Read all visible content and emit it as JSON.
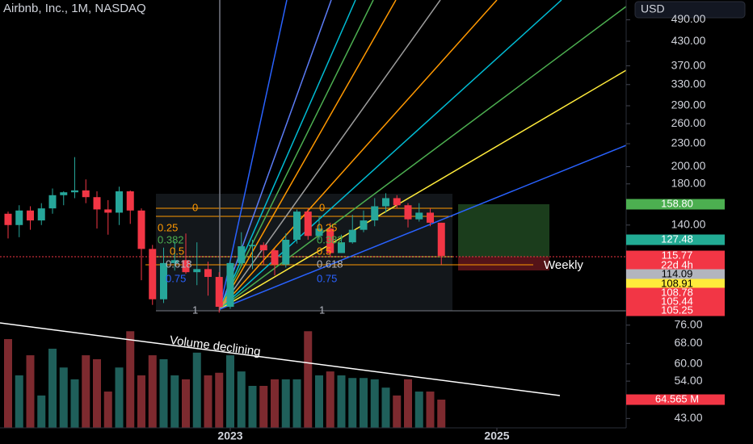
{
  "chart_data": {
    "type": "candlestick",
    "title": "Airbnb, Inc., 1M, NASDAQ",
    "currency": "USD",
    "log_scale": true,
    "categories": [
      null,
      null,
      null,
      null,
      null,
      null,
      null,
      null,
      null,
      null,
      null,
      null,
      null,
      null,
      null,
      null,
      null,
      null,
      null,
      null,
      null,
      null,
      null,
      null,
      null,
      null,
      null,
      null,
      null,
      null,
      null,
      null,
      null,
      null,
      null,
      null,
      null,
      null,
      null,
      null
    ],
    "open": [
      150,
      140,
      153,
      144,
      155,
      168,
      171,
      173,
      166,
      154,
      151,
      172,
      153,
      121,
      89,
      111,
      113,
      105,
      107,
      102,
      85,
      111,
      123,
      124,
      120,
      110,
      128,
      152,
      131,
      137,
      118,
      126,
      136,
      144,
      157,
      165,
      158,
      145,
      151,
      142
    ],
    "high": [
      152,
      158,
      157,
      160,
      175,
      172,
      212,
      185,
      172,
      163,
      177,
      173,
      155,
      124,
      122,
      127,
      133,
      126,
      112,
      105,
      113,
      134,
      128,
      126,
      121,
      133,
      154,
      155,
      148,
      142,
      132,
      149,
      153,
      165,
      170,
      168,
      160,
      160,
      155,
      142
    ],
    "low": [
      129,
      130,
      136,
      140,
      150,
      158,
      165,
      160,
      137,
      132,
      140,
      141,
      100,
      86,
      87,
      106,
      104,
      97,
      91,
      82,
      84,
      109,
      107,
      110,
      103,
      108,
      125,
      128,
      128,
      115,
      118,
      125,
      134,
      139,
      151,
      155,
      138,
      143,
      139,
      110
    ],
    "close": [
      140,
      153,
      144,
      155,
      168,
      171,
      173,
      166,
      154,
      151,
      172,
      153,
      121,
      89,
      111,
      113,
      105,
      107,
      102,
      85,
      111,
      123,
      124,
      120,
      110,
      128,
      152,
      131,
      137,
      118,
      126,
      136,
      144,
      157,
      165,
      158,
      145,
      151,
      142,
      116
    ],
    "up_color": "#26a69a",
    "down_color": "#f23645",
    "ylim": [
      40.6,
      553
    ],
    "yticks": [
      {
        "value": 490,
        "label": "490.00"
      },
      {
        "value": 430,
        "label": "430.00"
      },
      {
        "value": 370,
        "label": "370.00"
      },
      {
        "value": 330,
        "label": "330.00"
      },
      {
        "value": 290,
        "label": "290.00"
      },
      {
        "value": 260,
        "label": "260.00"
      },
      {
        "value": 230,
        "label": "230.00"
      },
      {
        "value": 200,
        "label": "200.00"
      },
      {
        "value": 180,
        "label": "180.00"
      },
      {
        "value": 140,
        "label": "140.00"
      },
      {
        "value": 76,
        "label": "76.00"
      },
      {
        "value": 68,
        "label": "68.00"
      },
      {
        "value": 60,
        "label": "60.00"
      },
      {
        "value": 54,
        "label": "54.00"
      },
      {
        "value": 43,
        "label": "43.00"
      }
    ],
    "xticks": [
      {
        "value": 20,
        "label": "2023"
      },
      {
        "value": 44,
        "label": "2025"
      }
    ],
    "volume": {
      "values": [
        203,
        120,
        166,
        74,
        181,
        138,
        111,
        166,
        157,
        83,
        138,
        221,
        120,
        166,
        157,
        120,
        111,
        172,
        120,
        126,
        166,
        129,
        96,
        96,
        111,
        111,
        111,
        221,
        120,
        129,
        120,
        114,
        114,
        111,
        92,
        74,
        111,
        83,
        83,
        64.565
      ],
      "value_labels": [
        null,
        null,
        null,
        null,
        null,
        null,
        null,
        null,
        null,
        null,
        null,
        null,
        null,
        null,
        null,
        null,
        null,
        null,
        null,
        null,
        null,
        null,
        null,
        null,
        null,
        null,
        null,
        null,
        null,
        null,
        null,
        null,
        null,
        null,
        null,
        null,
        null,
        null,
        null,
        "64.565 M"
      ],
      "ylim": [
        0,
        240
      ],
      "up_color": "#1f5f5a",
      "down_color": "#7d2a2f"
    },
    "price_tags": [
      {
        "label": "158.80",
        "color": "#4caf50"
      },
      {
        "label": "127.48",
        "color": "#22ab94"
      },
      {
        "label": "115.77",
        "color": "#f23645"
      },
      {
        "label": "22d 4h",
        "color": "#f23645"
      },
      {
        "label": "114.09",
        "color": "#b2b5be"
      },
      {
        "label": "108.91",
        "color": "#ffeb3b"
      },
      {
        "label": "108.78",
        "color": "#f23645"
      },
      {
        "label": "105.44",
        "color": "#f23645"
      },
      {
        "label": "105.25",
        "color": "#f23645"
      }
    ],
    "fib_levels": [
      "0",
      "0.25",
      "0.382",
      "0.5",
      "0.618",
      "0.75",
      "1"
    ],
    "annotations": [
      "Volume declining",
      "Weekly"
    ]
  }
}
